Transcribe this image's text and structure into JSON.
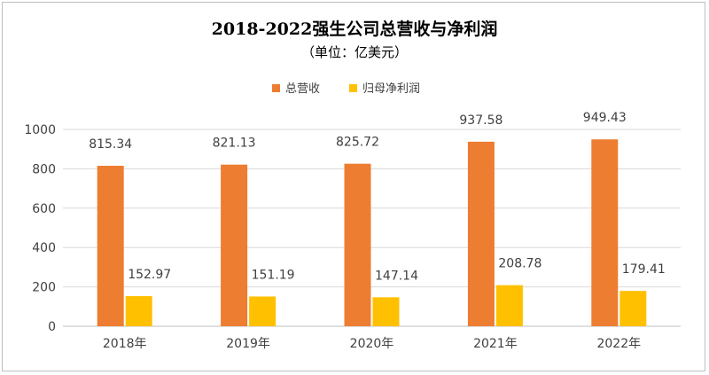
{
  "chart_data": {
    "type": "bar",
    "title": "2018-2022强生公司总营收与净利润",
    "subtitle": "（单位：亿美元）",
    "categories": [
      "2018年",
      "2019年",
      "2020年",
      "2021年",
      "2022年"
    ],
    "series": [
      {
        "name": "总营收",
        "color": "#ED7D31",
        "values": [
          815.34,
          821.13,
          825.72,
          937.58,
          949.43
        ],
        "labels": [
          "815.34",
          "821.13",
          "825.72",
          "937.58",
          "949.43"
        ]
      },
      {
        "name": "归母净利润",
        "color": "#FFC000",
        "values": [
          152.97,
          151.19,
          147.14,
          208.78,
          179.41
        ],
        "labels": [
          "152.97",
          "151.19",
          "147.14",
          "208.78",
          "179.41"
        ]
      }
    ],
    "ylim": [
      0,
      1000
    ],
    "yticks": [
      "0",
      "200",
      "400",
      "600",
      "800",
      "1000"
    ],
    "grid": true,
    "legend": "top-center"
  }
}
